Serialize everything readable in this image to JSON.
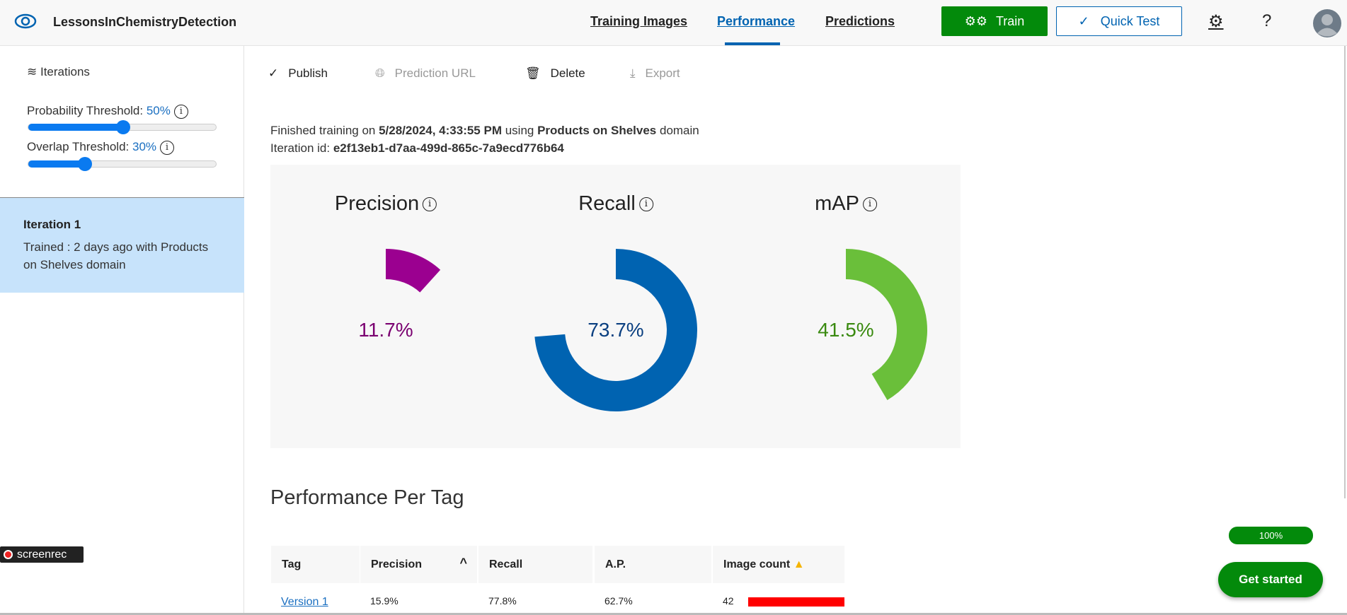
{
  "header": {
    "project_name": "LessonsInChemistryDetection",
    "tabs": [
      {
        "label": "Training Images"
      },
      {
        "label": "Performance",
        "active": true
      },
      {
        "label": "Predictions"
      }
    ],
    "train_label": "Train",
    "quick_test_label": "Quick Test",
    "help_label": "?"
  },
  "sidebar": {
    "iterations_label": "Iterations",
    "probability_label": "Probability Threshold: ",
    "probability_value": "50%",
    "probability": 50,
    "overlap_label": "Overlap Threshold: ",
    "overlap_value": "30%",
    "overlap": 30,
    "iteration": {
      "title": "Iteration 1",
      "line1": "Trained : 2 days ago with Products",
      "line2": "on Shelves domain"
    }
  },
  "toolbar": {
    "publish": "Publish",
    "prediction_url": "Prediction URL",
    "delete": "Delete",
    "export": "Export"
  },
  "summary": {
    "prefix": "Finished training on ",
    "date": "5/28/2024, 4:33:55 PM",
    "mid": " using ",
    "domain": "Products on Shelves",
    "suffix": " domain",
    "id_label": "Iteration id: ",
    "id": "e2f13eb1-d7aa-499d-865c-7a9ecd776b64"
  },
  "metrics": [
    {
      "name": "Precision",
      "value": "11.7%",
      "fraction": 0.117,
      "color": "#9b0090",
      "text_color": "#7a0070"
    },
    {
      "name": "Recall",
      "value": "73.7%",
      "fraction": 0.737,
      "color": "#0063b1",
      "text_color": "#0a3f80"
    },
    {
      "name": "mAP",
      "value": "41.5%",
      "fraction": 0.415,
      "color": "#6abf3a",
      "text_color": "#3a8a10"
    }
  ],
  "per_tag": {
    "title": "Performance Per Tag",
    "columns": [
      "Tag",
      "Precision",
      "Recall",
      "A.P.",
      "Image count"
    ],
    "rows": [
      {
        "tag": "Version 1",
        "precision": "15.9%",
        "recall": "77.8%",
        "ap": "62.7%",
        "count": "42"
      }
    ],
    "bar_color": "#ff0000"
  },
  "progress": {
    "label": "100%",
    "value": 100
  },
  "get_started": "Get started",
  "watermark": "screenrec"
}
